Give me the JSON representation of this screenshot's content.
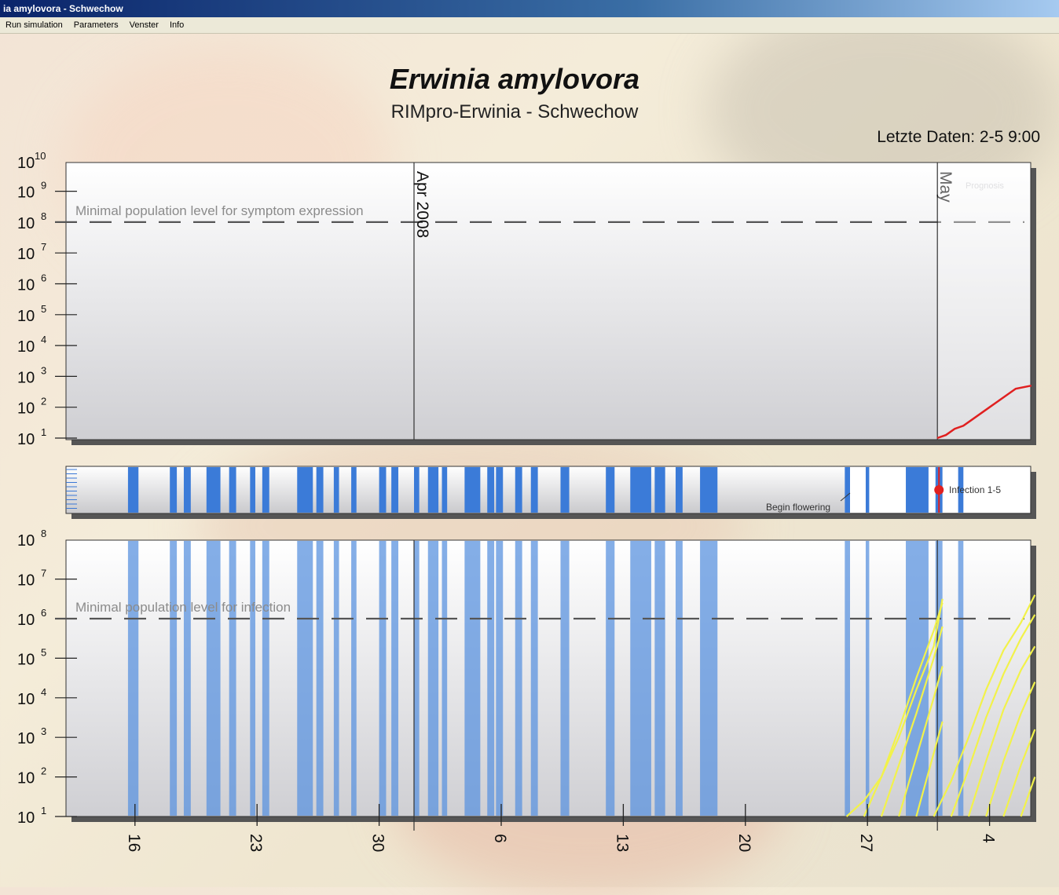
{
  "window": {
    "title": "ia amylovora - Schwechow"
  },
  "menu": [
    "Run simulation",
    "Parameters",
    "Venster",
    "Info"
  ],
  "header": {
    "title": "Erwinia amylovora",
    "subtitle": "RIMpro-Erwinia - Schwechow",
    "last_data": "Letzte Daten: 2-5 9:00"
  },
  "chart_data": [
    {
      "type": "line",
      "name": "top-panel",
      "y_axis": {
        "scale": "log",
        "tick_base": "10",
        "tick_exponents": [
          10,
          9,
          8,
          7,
          6,
          5,
          4,
          3,
          2,
          1
        ]
      },
      "threshold": {
        "exponent": 8,
        "label": "Minimal population level for symptom expression"
      },
      "markers": [
        {
          "label": "Apr 2008",
          "x_day": 0
        },
        {
          "label": "May",
          "x_day": 30
        }
      ],
      "corner_label": "Prognosis",
      "series": [
        {
          "color": "#e02020",
          "x_day": [
            30.0,
            30.5,
            31.0,
            31.5,
            32.0,
            32.5,
            33.0,
            33.5,
            34.0,
            34.5,
            35.4
          ],
          "y_exp": [
            1.0,
            1.1,
            1.3,
            1.4,
            1.6,
            1.8,
            2.0,
            2.2,
            2.4,
            2.6,
            2.7
          ]
        }
      ]
    },
    {
      "type": "bar",
      "name": "middle-strip",
      "annotations": [
        "Begin flowering",
        "Infection 1-5"
      ],
      "event_day": 30.1
    },
    {
      "type": "line",
      "name": "bottom-panel",
      "y_axis": {
        "scale": "log",
        "tick_base": "10",
        "tick_exponents": [
          8,
          7,
          6,
          5,
          4,
          3,
          2,
          1
        ]
      },
      "threshold": {
        "exponent": 6,
        "label": "Minimal population level for infection"
      },
      "x_axis": {
        "tick_labels": [
          "16",
          "23",
          "30",
          "6",
          "13",
          "20",
          "27",
          "4"
        ],
        "tick_days": [
          -16,
          -9,
          -2,
          5,
          12,
          19,
          26,
          33
        ]
      },
      "series": [
        {
          "color": "#f2f24a",
          "x_day": [
            24.8,
            25.8,
            26.8,
            27.8,
            28.8,
            29.8,
            30.3
          ],
          "y_exp": [
            1.0,
            1.4,
            2.0,
            3.0,
            4.2,
            5.3,
            6.5
          ]
        },
        {
          "color": "#f2f24a",
          "x_day": [
            25.8,
            26.8,
            27.8,
            28.8,
            29.8,
            30.3
          ],
          "y_exp": [
            1.0,
            2.0,
            3.2,
            4.5,
            5.7,
            6.4
          ]
        },
        {
          "color": "#f2f24a",
          "x_day": [
            26.8,
            27.8,
            28.8,
            29.8,
            30.3
          ],
          "y_exp": [
            1.0,
            2.3,
            3.6,
            5.0,
            5.8
          ]
        },
        {
          "color": "#f2f24a",
          "x_day": [
            27.8,
            28.8,
            29.8,
            30.3
          ],
          "y_exp": [
            1.0,
            2.5,
            4.0,
            4.8
          ]
        },
        {
          "color": "#f2f24a",
          "x_day": [
            28.8,
            29.8,
            30.3
          ],
          "y_exp": [
            1.0,
            2.6,
            3.4
          ]
        },
        {
          "color": "#f2f24a",
          "x_day": [
            29.8,
            30.8,
            31.8,
            32.8,
            33.8,
            34.8,
            35.6
          ],
          "y_exp": [
            1.0,
            1.9,
            3.0,
            4.2,
            5.2,
            5.9,
            6.6
          ]
        },
        {
          "color": "#f2f24a",
          "x_day": [
            30.8,
            31.8,
            32.8,
            33.8,
            34.8,
            35.6
          ],
          "y_exp": [
            1.0,
            2.2,
            3.5,
            4.6,
            5.5,
            6.1
          ]
        },
        {
          "color": "#f2f24a",
          "x_day": [
            31.8,
            32.8,
            33.8,
            34.8,
            35.6
          ],
          "y_exp": [
            1.0,
            2.4,
            3.7,
            4.7,
            5.3
          ]
        },
        {
          "color": "#f2f24a",
          "x_day": [
            32.8,
            33.8,
            34.8,
            35.6
          ],
          "y_exp": [
            1.0,
            2.4,
            3.6,
            4.4
          ]
        },
        {
          "color": "#f2f24a",
          "x_day": [
            33.8,
            34.8,
            35.6
          ],
          "y_exp": [
            1.0,
            2.3,
            3.2
          ]
        },
        {
          "color": "#f2f24a",
          "x_day": [
            34.8,
            35.6
          ],
          "y_exp": [
            1.0,
            2.0
          ]
        }
      ],
      "shaded_day_ranges": [
        [
          -26.8,
          -26.3
        ],
        [
          -26.1,
          -25.8
        ],
        [
          -25.5,
          -25.2
        ],
        [
          -24.5,
          -24.2
        ],
        [
          -23.6,
          -23.4
        ],
        [
          -22.9,
          -22.6
        ],
        [
          -21.4,
          -20.9
        ],
        [
          -20.6,
          -20.2
        ],
        [
          -16.4,
          -15.8
        ],
        [
          -14.0,
          -13.6
        ],
        [
          -13.2,
          -12.8
        ],
        [
          -11.9,
          -11.1
        ],
        [
          -10.6,
          -10.2
        ],
        [
          -9.4,
          -9.1
        ],
        [
          -8.7,
          -8.3
        ],
        [
          -6.7,
          -5.8
        ],
        [
          -5.6,
          -5.2
        ],
        [
          -4.6,
          -4.3
        ],
        [
          -3.6,
          -3.3
        ],
        [
          -2.0,
          -1.6
        ],
        [
          -1.3,
          -0.9
        ],
        [
          0.0,
          0.3
        ],
        [
          0.8,
          1.4
        ],
        [
          1.6,
          1.9
        ],
        [
          2.9,
          3.8
        ],
        [
          4.2,
          4.6
        ],
        [
          4.7,
          5.1
        ],
        [
          5.8,
          6.2
        ],
        [
          6.7,
          7.1
        ],
        [
          8.4,
          8.9
        ],
        [
          11.0,
          11.5
        ],
        [
          12.4,
          13.6
        ],
        [
          13.8,
          14.4
        ],
        [
          15.0,
          15.4
        ],
        [
          16.4,
          17.4
        ],
        [
          24.7,
          25.0
        ],
        [
          25.9,
          26.1
        ],
        [
          28.2,
          29.5
        ],
        [
          29.9,
          30.3
        ],
        [
          31.2,
          31.5
        ]
      ]
    }
  ]
}
